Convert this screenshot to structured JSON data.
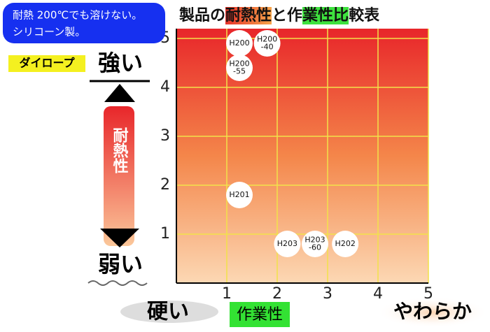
{
  "badge": [
    "耐熱 200℃でも溶けない。",
    "シリコーン製。"
  ],
  "brand": "ダイロープ",
  "y_high": "強い",
  "y_low": "弱い",
  "y_label": "耐熱性",
  "x_low": "硬い",
  "x_label": "作業性",
  "x_high": "やわらか",
  "chart_data": {
    "type": "scatter",
    "title": [
      "製品の",
      "耐熱性",
      "と作",
      "業性比",
      "較表"
    ],
    "xlim": [
      0,
      5
    ],
    "ylim": [
      0,
      5.2
    ],
    "xticks": [
      1,
      2,
      3,
      4,
      5
    ],
    "yticks": [
      1,
      2,
      3,
      4,
      5
    ],
    "grid": true,
    "grid_color": "#f2e24a",
    "color": "#ffffff",
    "points": [
      {
        "label": [
          "H200"
        ],
        "x": 1.25,
        "y": 4.9
      },
      {
        "label": [
          "H200",
          "-40"
        ],
        "x": 1.8,
        "y": 4.9
      },
      {
        "label": [
          "H200",
          "-55"
        ],
        "x": 1.25,
        "y": 4.4
      },
      {
        "label": [
          "H201"
        ],
        "x": 1.25,
        "y": 1.8
      },
      {
        "label": [
          "H203"
        ],
        "x": 2.2,
        "y": 0.8
      },
      {
        "label": [
          "H203",
          "-60"
        ],
        "x": 2.75,
        "y": 0.8
      },
      {
        "label": [
          "H202"
        ],
        "x": 3.35,
        "y": 0.8
      }
    ]
  }
}
